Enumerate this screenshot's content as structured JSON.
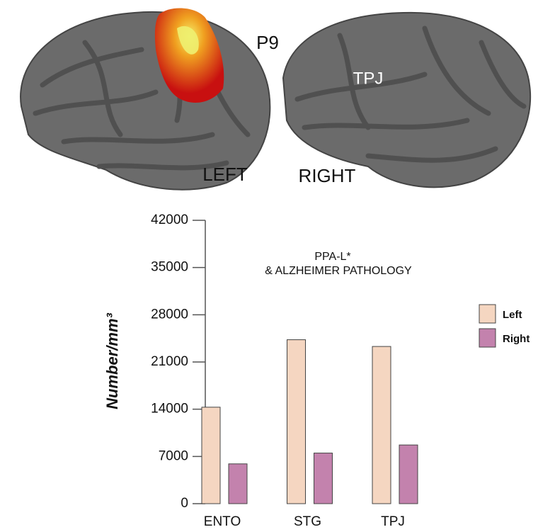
{
  "figure_labels": {
    "p9": "P9",
    "tpj": "TPJ",
    "left": "LEFT",
    "right": "RIGHT"
  },
  "chart_data": {
    "type": "bar",
    "title": "PPA-L*",
    "subtitle": "& ALZHEIMER PATHOLOGY",
    "y_label": "Number/mm³",
    "categories": [
      "ENTO",
      "STG",
      "TPJ"
    ],
    "series": [
      {
        "name": "Left",
        "color": "#f5d6c1",
        "values": [
          14300,
          24300,
          23300
        ]
      },
      {
        "name": "Right",
        "color": "#c382ad",
        "values": [
          5900,
          7500,
          8700
        ]
      }
    ],
    "ylim": [
      0,
      42000
    ],
    "yticks": [
      0,
      7000,
      14000,
      21000,
      28000,
      35000,
      42000
    ],
    "grid": false,
    "legend": "right"
  }
}
